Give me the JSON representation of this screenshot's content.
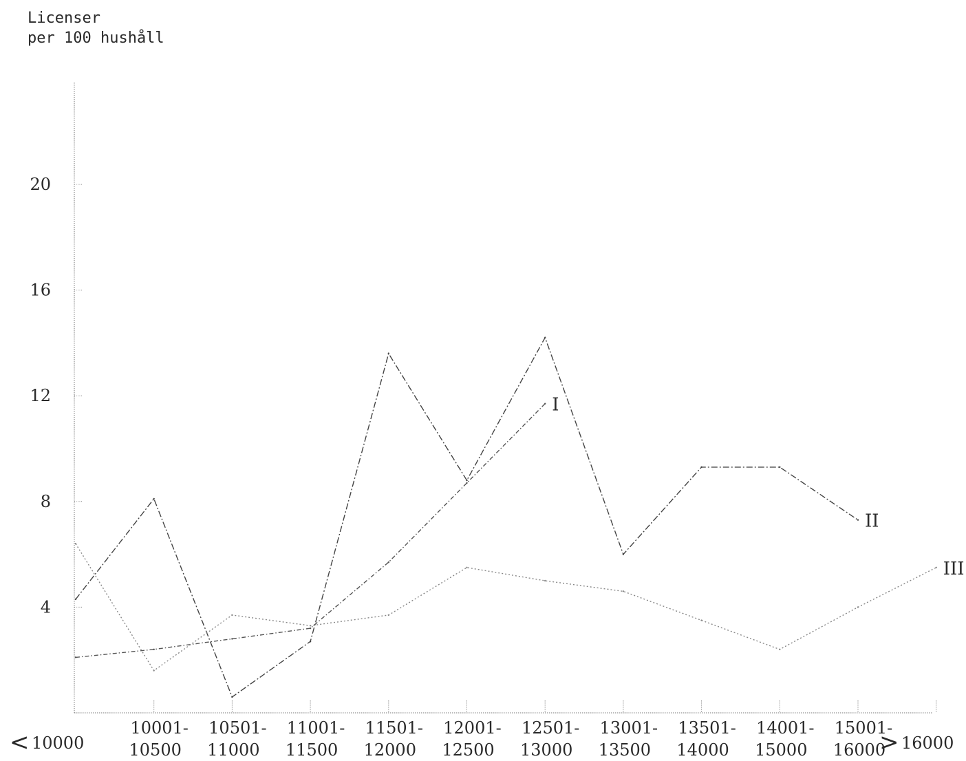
{
  "chart_data": {
    "type": "line",
    "title": "",
    "ylabel_lines": [
      "Licenser",
      "per 100 hushåll"
    ],
    "xlabel": "",
    "categories": [
      "<10000",
      "10001-10500",
      "10501-11000",
      "11001-11500",
      "11501-12000",
      "12001-12500",
      "12501-13000",
      "13001-13500",
      "13501-14000",
      "14001-15000",
      "15001-16000",
      ">16000"
    ],
    "x_tick_labels": [
      {
        "line1": "<",
        "line2": "10000"
      },
      {
        "line1": "10001-",
        "line2": "10500"
      },
      {
        "line1": "10501-",
        "line2": "11000"
      },
      {
        "line1": "11001-",
        "line2": "11500"
      },
      {
        "line1": "11501-",
        "line2": "12000"
      },
      {
        "line1": "12001-",
        "line2": "12500"
      },
      {
        "line1": "12501-",
        "line2": "13000"
      },
      {
        "line1": "13001-",
        "line2": "13500"
      },
      {
        "line1": "13501-",
        "line2": "14000"
      },
      {
        "line1": "14001-",
        "line2": "15000"
      },
      {
        "line1": "15001-",
        "line2": "16000"
      },
      {
        "line1": ">",
        "line2": "16000"
      }
    ],
    "y_ticks": [
      4,
      8,
      12,
      16,
      20
    ],
    "ylim": [
      0,
      24
    ],
    "grid": false,
    "series": [
      {
        "name": "I",
        "values": [
          2.1,
          2.4,
          2.8,
          3.2,
          5.7,
          8.7,
          11.7,
          null,
          null,
          null,
          null,
          null
        ],
        "dash": "6 3 1.5 3",
        "color": "#555555"
      },
      {
        "name": "II",
        "values": [
          4.3,
          8.1,
          0.6,
          2.7,
          13.6,
          8.8,
          14.2,
          6.0,
          9.3,
          9.3,
          7.3,
          null
        ],
        "dash": "9 3 2 3",
        "color": "#444444"
      },
      {
        "name": "III",
        "values": [
          6.4,
          1.6,
          3.7,
          3.3,
          3.7,
          5.5,
          5.0,
          4.6,
          3.5,
          2.4,
          4.0,
          5.5
        ],
        "dash": "2 3",
        "color": "#888888"
      }
    ]
  }
}
